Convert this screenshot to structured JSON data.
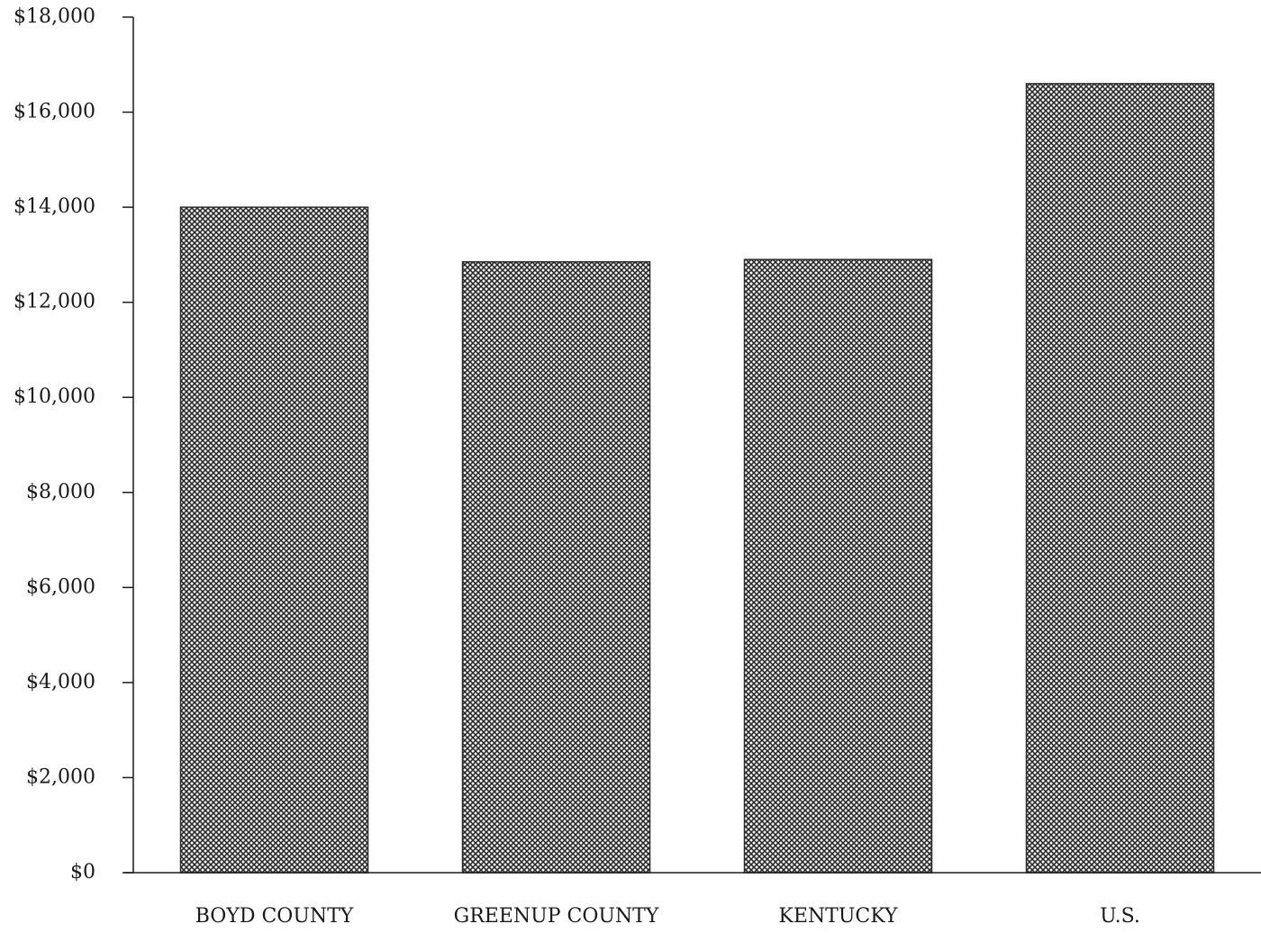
{
  "chart_data": {
    "type": "bar",
    "categories": [
      "BOYD COUNTY",
      "GREENUP COUNTY",
      "KENTUCKY",
      "U.S."
    ],
    "values": [
      14000,
      12850,
      12900,
      16600
    ],
    "ylim": [
      0,
      18000
    ],
    "yticks": [
      0,
      2000,
      4000,
      6000,
      8000,
      10000,
      12000,
      14000,
      16000,
      18000
    ],
    "ytick_labels": [
      "$0",
      "$2,000",
      "$4,000",
      "$6,000",
      "$8,000",
      "$10,000",
      "$12,000",
      "$14,000",
      "$16,000",
      "$18,000"
    ],
    "grid": false,
    "bar_fill": "crosshatch",
    "colors": {
      "bar_ink": "#2b2b2b",
      "axis": "#1a1a1a",
      "background": "#ffffff"
    }
  }
}
